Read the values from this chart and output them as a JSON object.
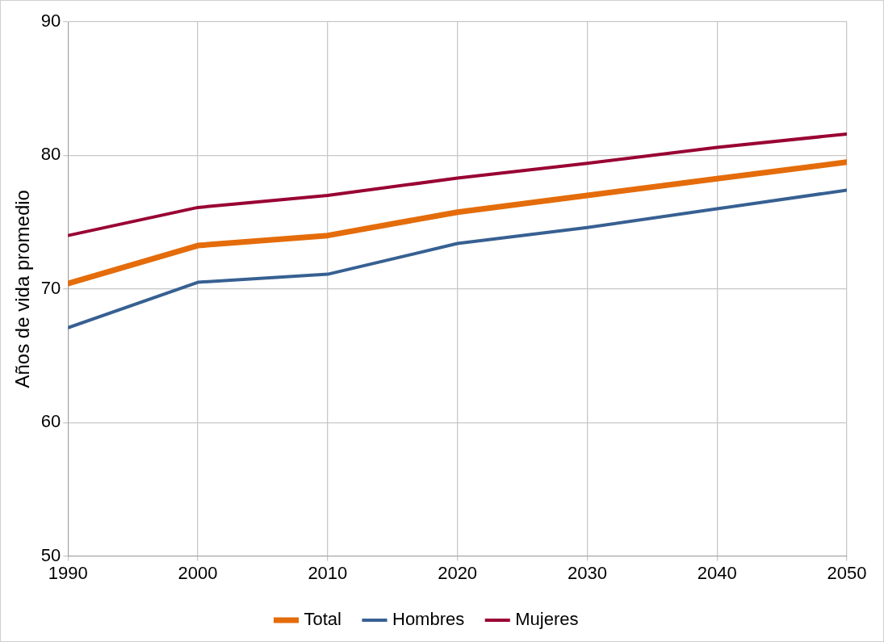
{
  "chart_data": {
    "type": "line",
    "ylabel": "Años de vida promedio",
    "x": [
      1990,
      2000,
      2010,
      2020,
      2030,
      2040,
      2050
    ],
    "series": [
      {
        "name": "Total",
        "color": "#e46c0a",
        "values": [
          70.4,
          73.25,
          74.0,
          75.75,
          77.0,
          78.25,
          79.5
        ]
      },
      {
        "name": "Hombres",
        "color": "#376092",
        "values": [
          67.1,
          70.5,
          71.1,
          73.4,
          74.6,
          76.0,
          77.4
        ]
      },
      {
        "name": "Mujeres",
        "color": "#990033",
        "values": [
          74.0,
          76.1,
          77.0,
          78.3,
          79.4,
          80.6,
          81.6
        ]
      }
    ],
    "xlim": [
      1990,
      2050
    ],
    "xticks": [
      1990,
      2000,
      2010,
      2020,
      2030,
      2040,
      2050
    ],
    "ylim": [
      50,
      90
    ],
    "yticks": [
      50,
      60,
      70,
      80,
      90
    ],
    "grid": true,
    "legend": "bottom",
    "marker": "none",
    "line_style": "solid"
  }
}
